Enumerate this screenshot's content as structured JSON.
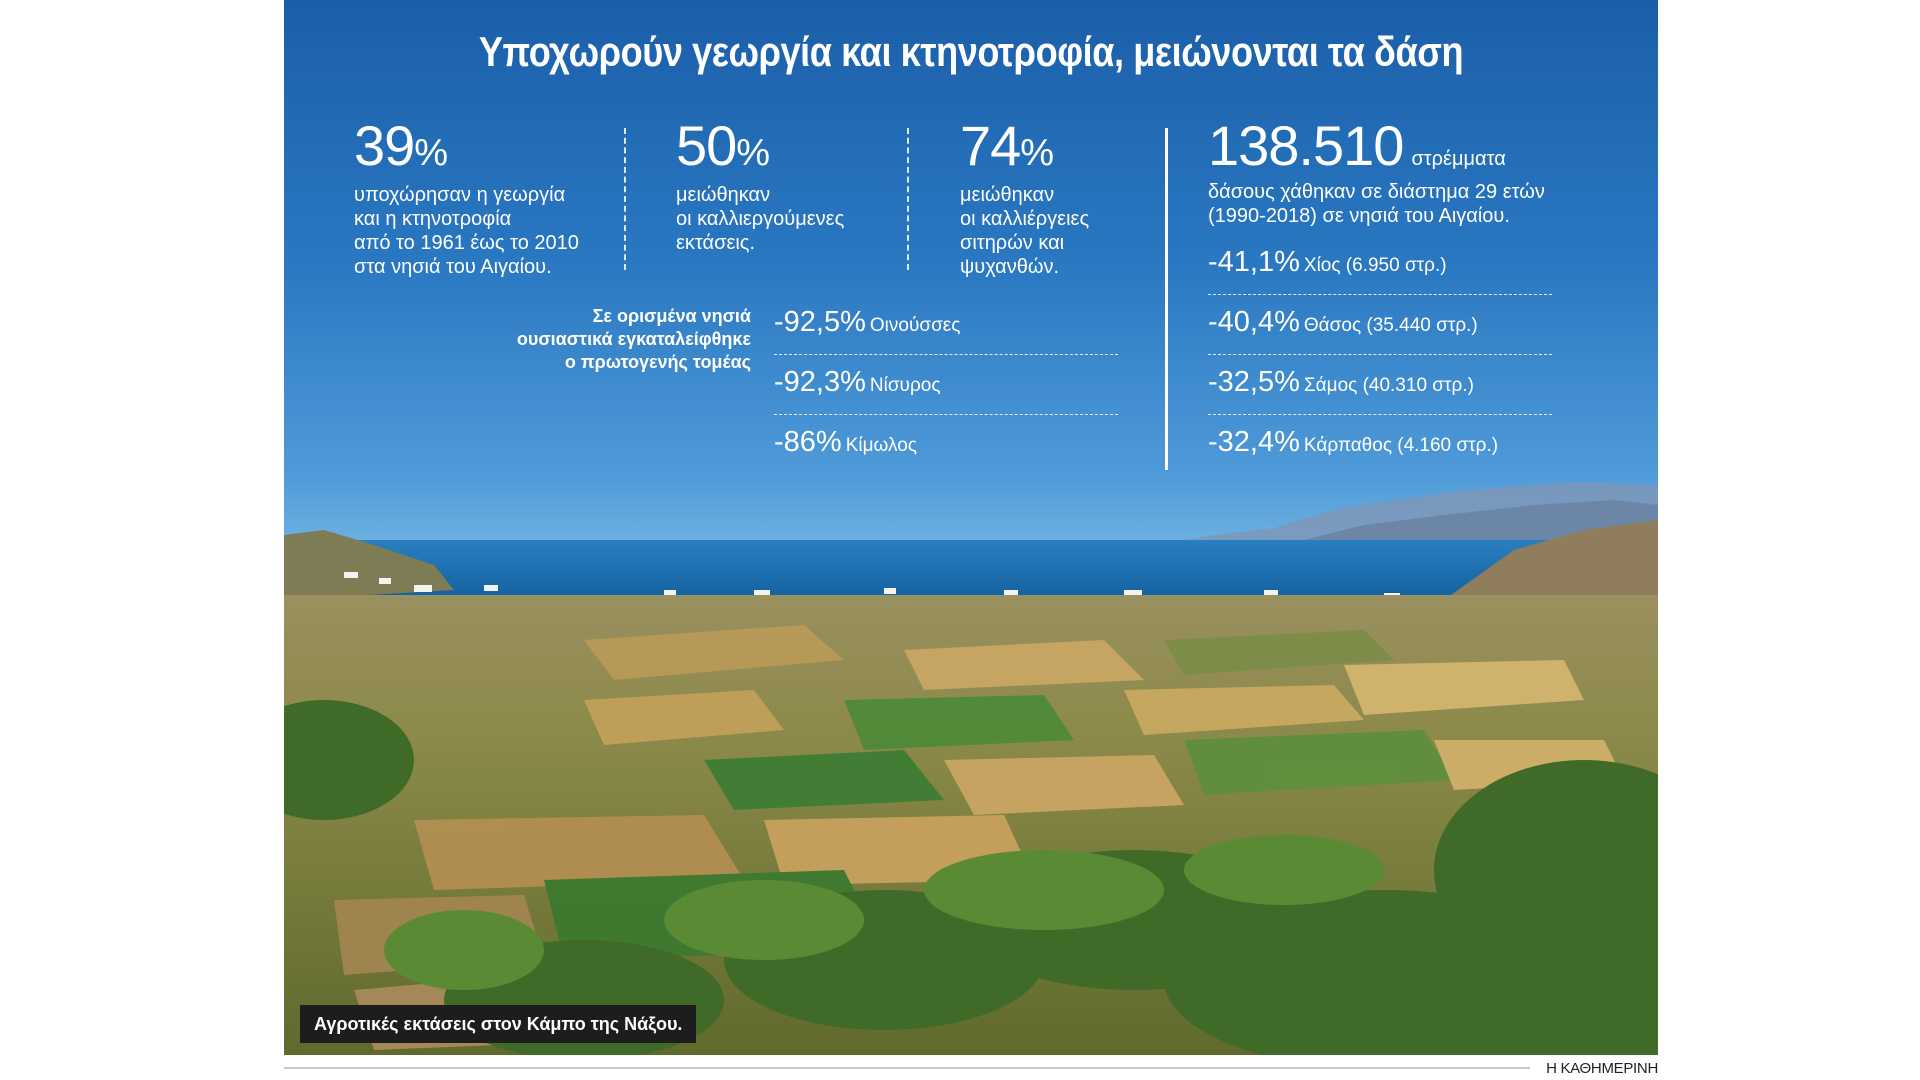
{
  "title": "Υποχωρούν γεωργία και κτηνοτροφία, μειώνονται τα δάση",
  "stats": [
    {
      "value": "39",
      "unit": "%",
      "text": [
        "υποχώρησαν η γεωργία",
        "και η κτηνοτροφία",
        "από το 1961 έως το 2010",
        "στα νησιά του Αιγαίου."
      ]
    },
    {
      "value": "50",
      "unit": "%",
      "text": [
        "μειώθηκαν",
        "οι καλλιεργούμενες",
        "εκτάσεις."
      ]
    },
    {
      "value": "74",
      "unit": "%",
      "text": [
        "μειώθηκαν",
        "οι καλλιέργειες",
        "σιτηρών και",
        "ψυχανθών."
      ]
    }
  ],
  "forest": {
    "value": "138.510",
    "unit": "στρέμματα",
    "text": [
      "δάσους χάθηκαν σε διάστημα 29 ετών",
      "(1990-2018) σε νησιά του Αιγαίου."
    ],
    "rows": [
      {
        "value": "-41,1%",
        "name": "Χίος (6.950 στρ.)"
      },
      {
        "value": "-40,4%",
        "name": "Θάσος (35.440 στρ.)"
      },
      {
        "value": "-32,5%",
        "name": "Σάμος (40.310 στρ.)"
      },
      {
        "value": "-32,4%",
        "name": "Κάρπαθος (4.160 στρ.)"
      }
    ]
  },
  "abandoned": {
    "note": [
      "Σε ορισμένα νησιά",
      "ουσιαστικά εγκαταλείφθηκε",
      "ο πρωτογενής τομέας"
    ],
    "rows": [
      {
        "value": "-92,5%",
        "name": "Οινούσσες"
      },
      {
        "value": "-92,3%",
        "name": "Νίσυρος"
      },
      {
        "value": "-86%",
        "name": "Κίμωλος"
      }
    ]
  },
  "caption": "Αγροτικές εκτάσεις στον Κάμπο της Νάξου.",
  "credit": "Η ΚΑΘΗΜΕΡΙΝΗ",
  "colors": {
    "sky_top": "#1f66ad",
    "sky_bottom": "#74b7e6",
    "sea": "#1c6fae",
    "field_green": "#4f8a3a",
    "field_tan": "#c9a55c"
  }
}
